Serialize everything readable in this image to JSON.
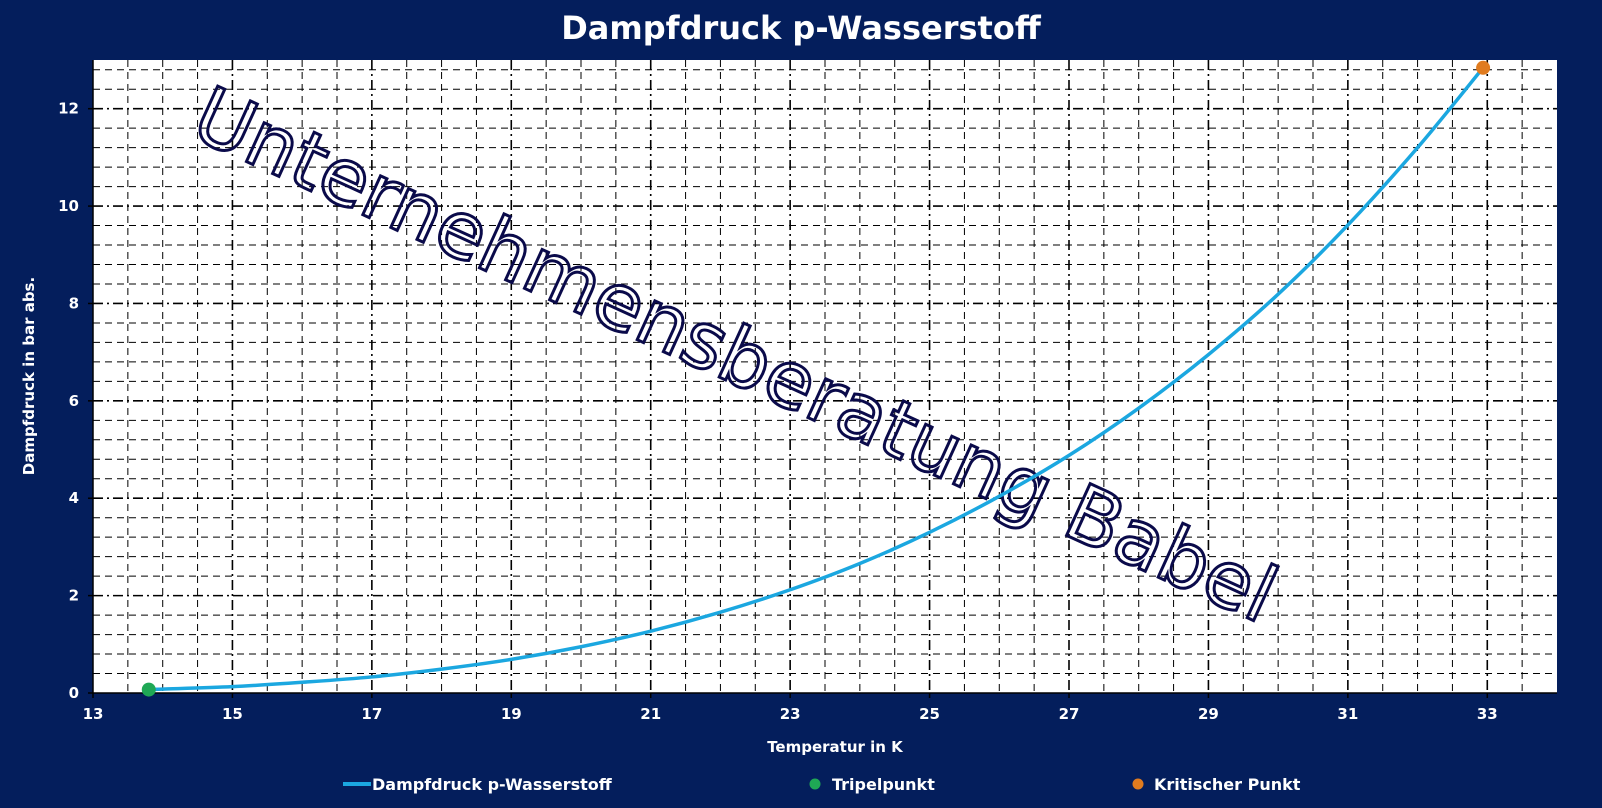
{
  "chart_data": {
    "type": "line",
    "title": "Dampfdruck p-Wasserstoff",
    "xlabel": "Temperatur in K",
    "ylabel": "Dampfdruck in bar abs.",
    "xlim": [
      13,
      34
    ],
    "ylim": [
      0,
      13
    ],
    "x_ticks": [
      13,
      15,
      17,
      19,
      21,
      23,
      25,
      27,
      29,
      31,
      33
    ],
    "y_ticks": [
      0,
      2,
      4,
      6,
      8,
      10,
      12
    ],
    "grid": true,
    "legend_position": "bottom",
    "watermark": "Unternehmensberatung Babel",
    "series": [
      {
        "name": "Dampfdruck p-Wasserstoff",
        "type": "line",
        "color": "#1BA7E0",
        "x": [
          13.8,
          14,
          15,
          16,
          17,
          18,
          19,
          20,
          21,
          22,
          23,
          24,
          25,
          26,
          27,
          28,
          29,
          30,
          31,
          32,
          32.94
        ],
        "y": [
          0.07,
          0.08,
          0.13,
          0.22,
          0.33,
          0.49,
          0.69,
          0.95,
          1.27,
          1.66,
          2.12,
          2.66,
          3.3,
          4.04,
          4.88,
          5.85,
          6.95,
          8.19,
          9.61,
          11.2,
          12.84
        ]
      },
      {
        "name": "Tripelpunkt",
        "type": "scatter",
        "color": "#1FA855",
        "x": [
          13.8
        ],
        "y": [
          0.07
        ]
      },
      {
        "name": "Kritischer Punkt",
        "type": "scatter",
        "color": "#E07B1F",
        "x": [
          32.94
        ],
        "y": [
          12.84
        ]
      }
    ]
  }
}
